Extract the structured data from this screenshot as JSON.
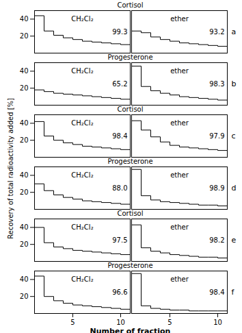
{
  "chart_data": [
    {
      "type": "step",
      "title": "Cortisol",
      "x": [
        1,
        2,
        3,
        4,
        5,
        6,
        7,
        8,
        9,
        10,
        11
      ],
      "values": [
        44,
        26,
        21,
        18,
        16,
        14,
        13,
        12,
        11,
        10,
        9
      ],
      "color": "#000000",
      "xlim": [
        1,
        11
      ],
      "xticks": [
        5,
        10
      ],
      "ylim": [
        0,
        50
      ],
      "yticks": [
        20,
        40
      ],
      "tick_labels": "y",
      "annotations": [
        "CH₂Cl₂",
        "99.3"
      ]
    },
    {
      "type": "step",
      "x": [
        1,
        2,
        3,
        4,
        5,
        6,
        7,
        8,
        9,
        10,
        11
      ],
      "values": [
        26,
        24,
        19,
        16,
        14,
        12,
        11,
        10,
        9,
        8,
        7
      ],
      "color": "#000000",
      "xlim": [
        1,
        11
      ],
      "xticks": [
        5,
        10
      ],
      "ylim": [
        0,
        50
      ],
      "yticks": [
        20,
        40
      ],
      "tick_labels": false,
      "annotations": [
        "ether",
        "93.2",
        "a"
      ]
    },
    {
      "type": "step",
      "title": "Progesterone",
      "x": [
        1,
        2,
        3,
        4,
        5,
        6,
        7,
        8,
        9,
        10,
        11
      ],
      "values": [
        18,
        16,
        14,
        13,
        12,
        11,
        10,
        9,
        8,
        7,
        6
      ],
      "color": "#000000",
      "xlim": [
        1,
        11
      ],
      "xticks": [
        5,
        10
      ],
      "ylim": [
        0,
        50
      ],
      "yticks": [
        20,
        40
      ],
      "tick_labels": "y",
      "annotations": [
        "CH₂Cl₂",
        "65.2"
      ]
    },
    {
      "type": "step",
      "x": [
        1,
        2,
        3,
        4,
        5,
        6,
        7,
        8,
        9,
        10,
        11
      ],
      "values": [
        46,
        22,
        17,
        14,
        12,
        10,
        9,
        8,
        7,
        6,
        5
      ],
      "color": "#000000",
      "xlim": [
        1,
        11
      ],
      "xticks": [
        5,
        10
      ],
      "ylim": [
        0,
        50
      ],
      "yticks": [
        20,
        40
      ],
      "tick_labels": false,
      "annotations": [
        "ether",
        "98.3",
        "b"
      ]
    },
    {
      "type": "step",
      "title": "Cortisol",
      "x": [
        1,
        2,
        3,
        4,
        5,
        6,
        7,
        8,
        9,
        10,
        11
      ],
      "values": [
        42,
        25,
        20,
        17,
        15,
        13,
        12,
        11,
        10,
        9,
        8
      ],
      "color": "#000000",
      "xlim": [
        1,
        11
      ],
      "xticks": [
        5,
        10
      ],
      "ylim": [
        0,
        50
      ],
      "yticks": [
        20,
        40
      ],
      "tick_labels": "y",
      "annotations": [
        "CH₂Cl₂",
        "98.4"
      ]
    },
    {
      "type": "step",
      "x": [
        1,
        2,
        3,
        4,
        5,
        6,
        7,
        8,
        9,
        10,
        11
      ],
      "values": [
        43,
        32,
        24,
        18,
        14,
        12,
        11,
        10,
        9,
        8,
        7
      ],
      "color": "#000000",
      "xlim": [
        1,
        11
      ],
      "xticks": [
        5,
        10
      ],
      "ylim": [
        0,
        50
      ],
      "yticks": [
        20,
        40
      ],
      "tick_labels": false,
      "annotations": [
        "ether",
        "97.9",
        "c"
      ]
    },
    {
      "type": "step",
      "title": "Progesterone",
      "x": [
        1,
        2,
        3,
        4,
        5,
        6,
        7,
        8,
        9,
        10,
        11
      ],
      "values": [
        30,
        22,
        17,
        14,
        12,
        10,
        9,
        8,
        7,
        6,
        5
      ],
      "color": "#000000",
      "xlim": [
        1,
        11
      ],
      "xticks": [
        5,
        10
      ],
      "ylim": [
        0,
        50
      ],
      "yticks": [
        20,
        40
      ],
      "tick_labels": "y",
      "annotations": [
        "CH₂Cl₂",
        "88.0"
      ]
    },
    {
      "type": "step",
      "x": [
        1,
        2,
        3,
        4,
        5,
        6,
        7,
        8,
        9,
        10,
        11
      ],
      "values": [
        47,
        16,
        11,
        9,
        8,
        7,
        6,
        5,
        5,
        4,
        4
      ],
      "color": "#000000",
      "xlim": [
        1,
        11
      ],
      "xticks": [
        5,
        10
      ],
      "ylim": [
        0,
        50
      ],
      "yticks": [
        20,
        40
      ],
      "tick_labels": false,
      "annotations": [
        "ether",
        "98.9",
        "d"
      ]
    },
    {
      "type": "step",
      "title": "Cortisol",
      "x": [
        1,
        2,
        3,
        4,
        5,
        6,
        7,
        8,
        9,
        10,
        11
      ],
      "values": [
        40,
        22,
        17,
        15,
        13,
        12,
        11,
        10,
        9,
        8,
        7
      ],
      "color": "#000000",
      "xlim": [
        1,
        11
      ],
      "xticks": [
        5,
        10
      ],
      "ylim": [
        0,
        50
      ],
      "yticks": [
        20,
        40
      ],
      "tick_labels": "y",
      "annotations": [
        "CH₂Cl₂",
        "97.5"
      ]
    },
    {
      "type": "step",
      "x": [
        1,
        2,
        3,
        4,
        5,
        6,
        7,
        8,
        9,
        10,
        11
      ],
      "values": [
        43,
        16,
        12,
        10,
        8,
        7,
        6,
        5,
        5,
        4,
        4
      ],
      "color": "#000000",
      "xlim": [
        1,
        11
      ],
      "xticks": [
        5,
        10
      ],
      "ylim": [
        0,
        50
      ],
      "yticks": [
        20,
        40
      ],
      "tick_labels": false,
      "annotations": [
        "ether",
        "98.2",
        "e"
      ]
    },
    {
      "type": "step",
      "title": "Progesterone",
      "x": [
        1,
        2,
        3,
        4,
        5,
        6,
        7,
        8,
        9,
        10,
        11
      ],
      "values": [
        44,
        20,
        15,
        12,
        10,
        9,
        8,
        7,
        6,
        5,
        5
      ],
      "color": "#000000",
      "xlim": [
        1,
        11
      ],
      "xticks": [
        5,
        10
      ],
      "ylim": [
        0,
        50
      ],
      "yticks": [
        20,
        40
      ],
      "xlabel": "Number of fraction",
      "ylabel": "Recovery of total radioactivity added [%]",
      "annotations": [
        "CH₂Cl₂",
        "96.6"
      ]
    },
    {
      "type": "step",
      "x": [
        1,
        2,
        3,
        4,
        5,
        6,
        7,
        8,
        9,
        10,
        11
      ],
      "values": [
        47,
        9,
        6,
        5,
        4,
        4,
        3,
        3,
        3,
        3,
        3
      ],
      "color": "#000000",
      "xlim": [
        1,
        11
      ],
      "xticks": [
        5,
        10
      ],
      "ylim": [
        0,
        50
      ],
      "yticks": [
        20,
        40
      ],
      "tick_labels": "x",
      "annotations": [
        "ether",
        "98.4",
        "f"
      ]
    }
  ]
}
